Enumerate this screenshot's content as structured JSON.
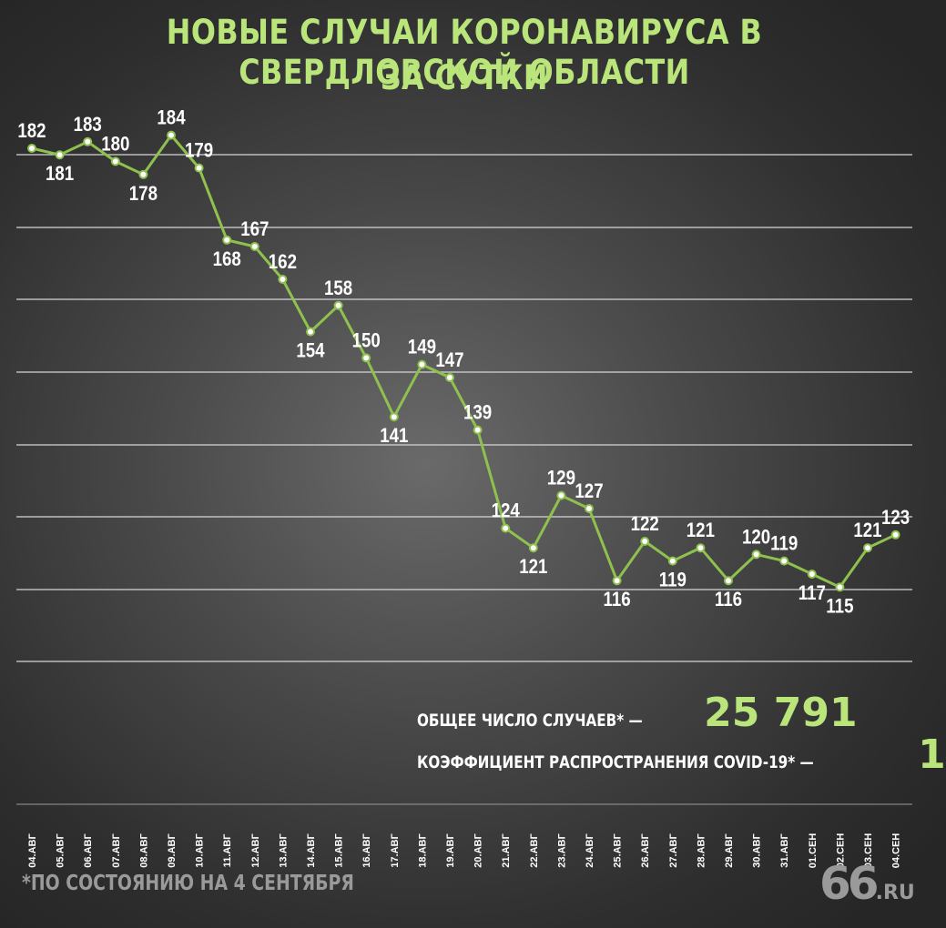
{
  "title_line1": "НОВЫЕ СЛУЧАИ КОРОНАВИРУСА В СВЕРДЛОВСКОЙ ОБЛАСТИ",
  "title_line2": "ЗА СУТКИ",
  "summary": {
    "total_label": "ОБЩЕЕ ЧИСЛО СЛУЧАЕВ* —",
    "total_value": "25 791",
    "rt_label": "КОЭФФИЦИЕНТ РАСПРОСТРАНЕНИЯ COVID-19* —",
    "rt_value": "1"
  },
  "footnote": "*ПО СОСТОЯНИЮ НА 4 СЕНТЯБРЯ",
  "logo": {
    "number": "66",
    "domain": ".RU"
  },
  "colors": {
    "accent": "#b9e57a",
    "line": "#8fc14e",
    "text": "#ffffff",
    "muted": "#9a9a9a"
  },
  "chart_data": {
    "type": "line",
    "title": "НОВЫЕ СЛУЧАИ КОРОНАВИРУСА В СВЕРДЛОВСКОЙ ОБЛАСТИ ЗА СУТКИ",
    "xlabel": "",
    "ylabel": "",
    "grid": true,
    "categories": [
      "04.АВГ",
      "05.АВГ",
      "06.АВГ",
      "07.АВГ",
      "08.АВГ",
      "09.АВГ",
      "10.АВГ",
      "11.АВГ",
      "12.АВГ",
      "13.АВГ",
      "14.АВГ",
      "15.АВГ",
      "16.АВГ",
      "17.АВГ",
      "18.АВГ",
      "19.АВГ",
      "20.АВГ",
      "21.АВГ",
      "22.АВГ",
      "23.АВГ",
      "24.АВГ",
      "25.АВГ",
      "26.АВГ",
      "27.АВГ",
      "28.АВГ",
      "29.АВГ",
      "30.АВГ",
      "31.АВГ",
      "01.СЕН",
      "02.СЕН",
      "03.СЕН",
      "04.СЕН"
    ],
    "values": [
      182,
      181,
      183,
      180,
      178,
      184,
      179,
      168,
      167,
      162,
      154,
      158,
      150,
      141,
      149,
      147,
      139,
      124,
      121,
      129,
      127,
      116,
      122,
      119,
      121,
      116,
      120,
      119,
      117,
      115,
      121,
      123
    ],
    "label_positions": [
      "above",
      "below",
      "above",
      "above",
      "below",
      "above",
      "above",
      "below",
      "above",
      "above",
      "below",
      "above",
      "above",
      "below",
      "above",
      "above",
      "above",
      "above",
      "below",
      "above",
      "above",
      "below",
      "above",
      "below",
      "above",
      "below",
      "above",
      "above",
      "below",
      "below",
      "above",
      "above"
    ]
  }
}
